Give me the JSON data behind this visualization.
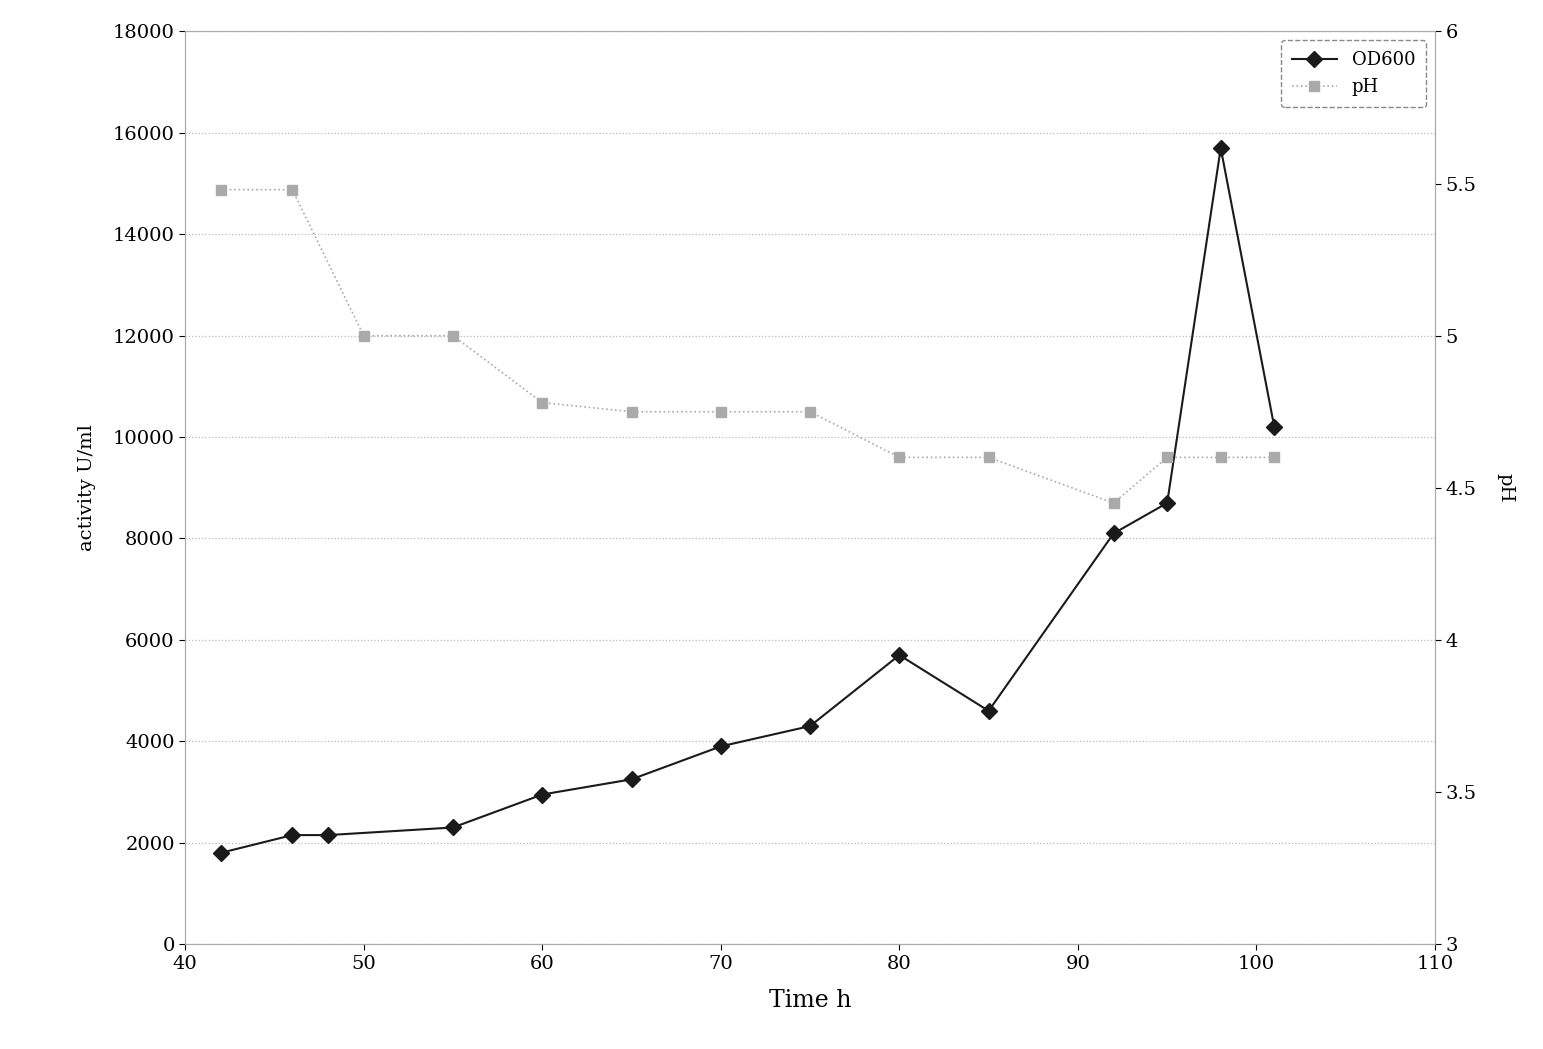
{
  "od600_x": [
    42,
    46,
    48,
    55,
    60,
    65,
    70,
    75,
    80,
    85,
    92,
    95,
    98,
    101
  ],
  "od600_y": [
    1800,
    2150,
    2150,
    2300,
    2950,
    3250,
    3900,
    4300,
    5700,
    4600,
    8100,
    8700,
    15700,
    10200
  ],
  "ph_x": [
    42,
    46,
    50,
    55,
    60,
    65,
    70,
    75,
    80,
    85,
    92,
    95,
    98,
    101
  ],
  "ph_y": [
    5.48,
    5.48,
    5.0,
    5.0,
    4.78,
    4.75,
    4.75,
    4.75,
    4.6,
    4.6,
    4.45,
    4.6,
    4.6,
    4.6
  ],
  "xlabel": "Time h",
  "ylabel_left": "activity U/ml",
  "ylabel_right": "pH",
  "xlim": [
    40,
    110
  ],
  "ylim_left": [
    0,
    18000
  ],
  "ylim_right": [
    3,
    6
  ],
  "xticks": [
    40,
    50,
    60,
    70,
    80,
    90,
    100,
    110
  ],
  "yticks_left": [
    0,
    2000,
    4000,
    6000,
    8000,
    10000,
    12000,
    14000,
    16000,
    18000
  ],
  "yticks_right": [
    3,
    3.5,
    4,
    4.5,
    5,
    5.5,
    6
  ],
  "ytick_right_labels": [
    "3",
    "3.5",
    "4",
    "4.5",
    "5",
    "5.5",
    "6"
  ],
  "od600_color": "#1a1a1a",
  "ph_color": "#aaaaaa",
  "legend_labels": [
    "OD600",
    "pH"
  ],
  "background_color": "#ffffff",
  "grid_color": "#bbbbbb",
  "spine_color": "#aaaaaa"
}
